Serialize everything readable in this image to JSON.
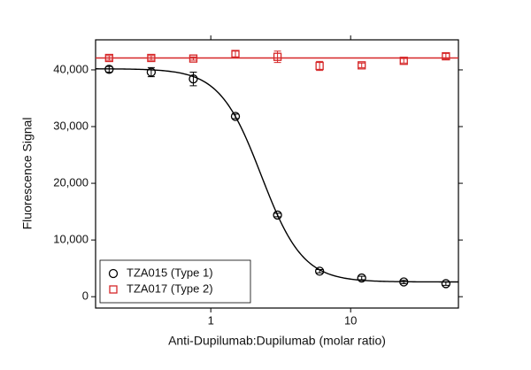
{
  "chart_data": {
    "type": "scatter",
    "xlabel": "Anti-Dupilumab:Dupilumab (molar ratio)",
    "ylabel": "Fluorescence Signal",
    "xscale": "log",
    "x": [
      0.1875,
      0.375,
      0.75,
      1.5,
      3,
      6,
      12,
      24,
      48
    ],
    "series": [
      {
        "name": "TZA015 (Type 1)",
        "color": "#000000",
        "marker": "circle",
        "values": [
          40100,
          39600,
          38400,
          31800,
          14400,
          4500,
          3300,
          2600,
          2300
        ],
        "errors": [
          500,
          800,
          1200,
          400,
          300,
          300,
          300,
          300,
          300
        ],
        "fit": {
          "top": 40200,
          "bottom": 2600,
          "ec50": 2.295,
          "hill": 2.92
        }
      },
      {
        "name": "TZA017 (Type 2)",
        "color": "#d62728",
        "marker": "square",
        "values": [
          42100,
          42100,
          42000,
          42800,
          42300,
          40700,
          40800,
          41600,
          42400
        ],
        "errors": [
          400,
          400,
          300,
          500,
          1000,
          800,
          400,
          400,
          500
        ],
        "fit": {
          "top": 42100,
          "bottom": 42100,
          "ec50": 2.295,
          "hill": 2.92
        }
      }
    ],
    "xlim": [
      0.15,
      59
    ],
    "xticks": [
      1,
      10
    ],
    "ylim": [
      -2000,
      45300
    ],
    "yticks": [
      0,
      {
        "value": 10000,
        "label": "10,000"
      },
      {
        "value": 20000,
        "label": "20,000"
      },
      {
        "value": 30000,
        "label": "30,000"
      },
      {
        "value": 40000,
        "label": "40,000"
      }
    ],
    "legend": "lower left"
  }
}
